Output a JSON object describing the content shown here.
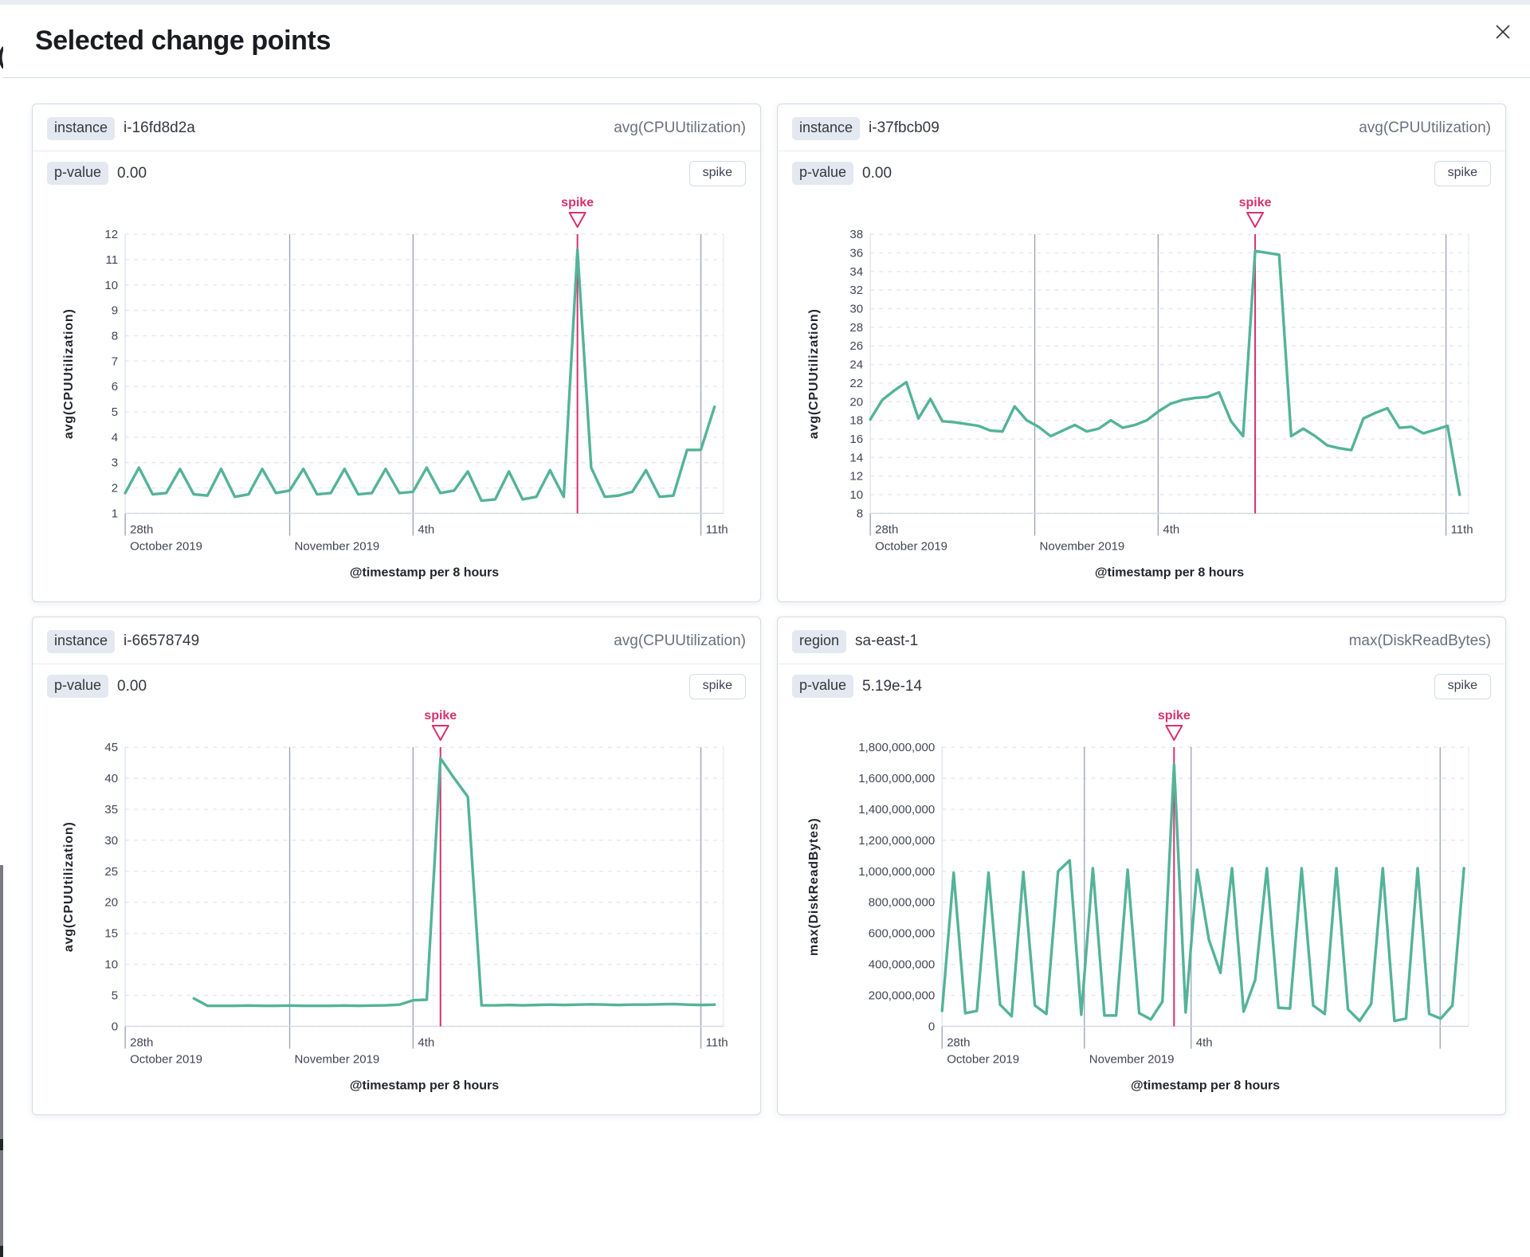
{
  "modal": {
    "title": "Selected change points",
    "close_icon": "close-icon"
  },
  "colors": {
    "line": "#54b399",
    "annotation": "#d6326e",
    "grid": "#e2e7f3",
    "dark_grid": "#98a2b3",
    "axis_base": "#d3dae6",
    "tick_text": "#404554",
    "axis_title_text": "#22252c"
  },
  "panels": [
    {
      "field_label": "instance",
      "field_value": "i-16fd8d2a",
      "metric": "avg(CPUUtilization)",
      "p_value_label": "p-value",
      "p_value": "0.00",
      "spike_button": "spike",
      "chart_data": {
        "type": "line",
        "x_title": "@timestamp per 8 hours",
        "y_title": "avg(CPUUtilization)",
        "ylim": [
          1,
          12
        ],
        "y_tick_step": 1,
        "y_grouped": false,
        "x_axis_end_day": 14.55,
        "series_start_day": 0,
        "series_end_day": 14.33,
        "dark_grid_days": [
          4,
          7,
          14
        ],
        "x_ticks_row1": [
          {
            "day": 0,
            "label": "28th"
          },
          {
            "day": 7,
            "label": "4th"
          },
          {
            "day": 14,
            "label": "11th"
          }
        ],
        "x_ticks_row2": [
          {
            "day": 0,
            "label": "October 2019"
          },
          {
            "day": 4,
            "label": "November 2019"
          }
        ],
        "annotation": {
          "label": "spike",
          "type": "spike"
        },
        "values": [
          1.8,
          2.8,
          1.75,
          1.8,
          2.75,
          1.75,
          1.7,
          2.75,
          1.65,
          1.75,
          2.75,
          1.8,
          1.9,
          2.75,
          1.75,
          1.8,
          2.75,
          1.75,
          1.8,
          2.75,
          1.8,
          1.85,
          2.8,
          1.8,
          1.9,
          2.65,
          1.5,
          1.55,
          2.65,
          1.55,
          1.65,
          2.7,
          1.65,
          11.4,
          2.8,
          1.65,
          1.7,
          1.85,
          2.7,
          1.65,
          1.7,
          3.5,
          3.5,
          5.2
        ]
      }
    },
    {
      "field_label": "instance",
      "field_value": "i-37fbcb09",
      "metric": "avg(CPUUtilization)",
      "p_value_label": "p-value",
      "p_value": "0.00",
      "spike_button": "spike",
      "chart_data": {
        "type": "line",
        "x_title": "@timestamp per 8 hours",
        "y_title": "avg(CPUUtilization)",
        "ylim": [
          8,
          38
        ],
        "y_tick_step": 2,
        "y_grouped": false,
        "x_axis_end_day": 14.55,
        "series_start_day": 0,
        "series_end_day": 14.33,
        "dark_grid_days": [
          4,
          7,
          14
        ],
        "x_ticks_row1": [
          {
            "day": 0,
            "label": "28th"
          },
          {
            "day": 7,
            "label": "4th"
          },
          {
            "day": 14,
            "label": "11th"
          }
        ],
        "x_ticks_row2": [
          {
            "day": 0,
            "label": "October 2019"
          },
          {
            "day": 4,
            "label": "November 2019"
          }
        ],
        "annotation": {
          "label": "spike",
          "type": "spike"
        },
        "values": [
          18.1,
          20.2,
          21.2,
          22.1,
          18.2,
          20.3,
          17.9,
          17.8,
          17.6,
          17.4,
          16.9,
          16.8,
          19.5,
          18.0,
          17.3,
          16.3,
          16.9,
          17.5,
          16.8,
          17.1,
          18.0,
          17.2,
          17.5,
          18.0,
          19.0,
          19.8,
          20.2,
          20.4,
          20.5,
          21.0,
          17.9,
          16.3,
          36.2,
          36.0,
          35.8,
          16.3,
          17.1,
          16.3,
          15.3,
          15.0,
          14.8,
          18.2,
          18.8,
          19.3,
          17.2,
          17.3,
          16.6,
          17.0,
          17.4,
          10.0
        ]
      }
    },
    {
      "field_label": "instance",
      "field_value": "i-66578749",
      "metric": "avg(CPUUtilization)",
      "p_value_label": "p-value",
      "p_value": "0.00",
      "spike_button": "spike",
      "chart_data": {
        "type": "line",
        "x_title": "@timestamp per 8 hours",
        "y_title": "avg(CPUUtilization)",
        "ylim": [
          0,
          45
        ],
        "y_tick_step": 5,
        "y_grouped": false,
        "x_axis_end_day": 14.55,
        "series_start_day": 1.67,
        "series_end_day": 14.33,
        "dark_grid_days": [
          4,
          7,
          14
        ],
        "x_ticks_row1": [
          {
            "day": 0,
            "label": "28th"
          },
          {
            "day": 7,
            "label": "4th"
          },
          {
            "day": 14,
            "label": "11th"
          }
        ],
        "x_ticks_row2": [
          {
            "day": 0,
            "label": "October 2019"
          },
          {
            "day": 4,
            "label": "November 2019"
          }
        ],
        "annotation": {
          "label": "spike",
          "type": "spike"
        },
        "values": [
          4.5,
          3.3,
          3.3,
          3.3,
          3.35,
          3.3,
          3.3,
          3.35,
          3.3,
          3.3,
          3.3,
          3.35,
          3.3,
          3.35,
          3.4,
          3.5,
          4.2,
          4.3,
          43.2,
          40.0,
          37.0,
          3.4,
          3.4,
          3.45,
          3.4,
          3.45,
          3.5,
          3.45,
          3.5,
          3.55,
          3.5,
          3.45,
          3.5,
          3.5,
          3.55,
          3.6,
          3.5,
          3.45,
          3.5
        ]
      }
    },
    {
      "field_label": "region",
      "field_value": "sa-east-1",
      "metric": "max(DiskReadBytes)",
      "p_value_label": "p-value",
      "p_value": "5.19e-14",
      "spike_button": "spike",
      "chart_data": {
        "type": "line",
        "x_title": "@timestamp per 8 hours",
        "y_title": "max(DiskReadBytes)",
        "ylim": [
          0,
          1800000000
        ],
        "y_tick_step": 200000000,
        "y_grouped": true,
        "x_axis_end_day": 14.8,
        "series_start_day": 0,
        "series_end_day": 14.67,
        "dark_grid_days": [
          4,
          7,
          14
        ],
        "x_ticks_row1": [
          {
            "day": 0,
            "label": "28th"
          },
          {
            "day": 7,
            "label": "4th"
          }
        ],
        "x_ticks_row2": [
          {
            "day": 0,
            "label": "October 2019"
          },
          {
            "day": 4,
            "label": "November 2019"
          }
        ],
        "annotation": {
          "label": "spike",
          "type": "spike"
        },
        "values": [
          100000000,
          990000000,
          85000000,
          100000000,
          990000000,
          140000000,
          65000000,
          995000000,
          135000000,
          80000000,
          1000000000,
          1070000000,
          75000000,
          1020000000,
          70000000,
          70000000,
          1010000000,
          85000000,
          45000000,
          160000000,
          1690000000,
          90000000,
          1010000000,
          560000000,
          345000000,
          1020000000,
          95000000,
          300000000,
          1020000000,
          120000000,
          115000000,
          1020000000,
          135000000,
          80000000,
          1020000000,
          110000000,
          35000000,
          145000000,
          1020000000,
          35000000,
          50000000,
          1020000000,
          80000000,
          50000000,
          135000000,
          1020000000
        ]
      }
    }
  ]
}
